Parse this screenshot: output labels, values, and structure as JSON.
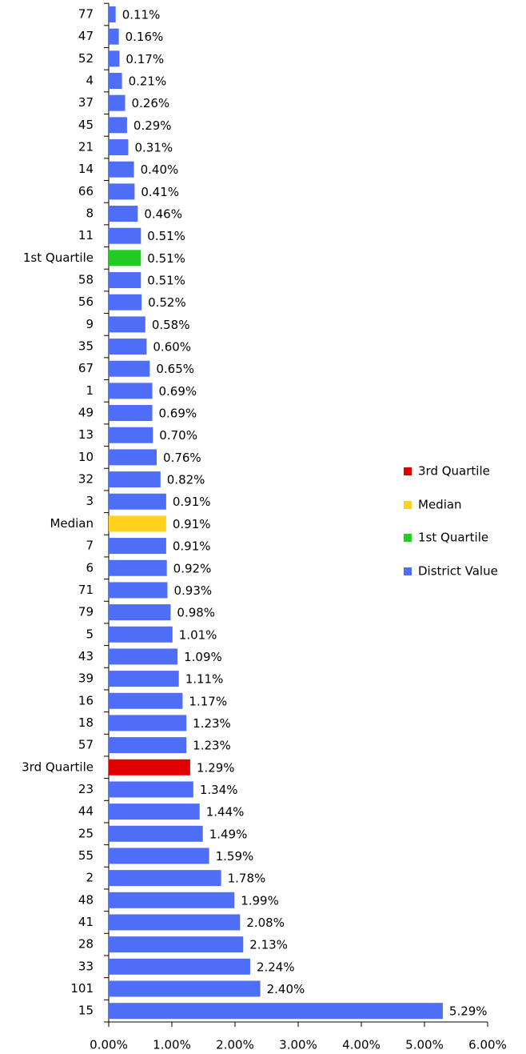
{
  "chart_data": {
    "type": "barh",
    "categories": [
      "77",
      "47",
      "52",
      "4",
      "37",
      "45",
      "21",
      "14",
      "66",
      "8",
      "11",
      "1st Quartile",
      "58",
      "56",
      "9",
      "35",
      "67",
      "1",
      "49",
      "13",
      "10",
      "32",
      "3",
      "Median",
      "7",
      "6",
      "71",
      "79",
      "5",
      "43",
      "39",
      "16",
      "18",
      "57",
      "3rd Quartile",
      "23",
      "44",
      "25",
      "55",
      "2",
      "48",
      "41",
      "28",
      "33",
      "101",
      "15"
    ],
    "series": [
      {
        "name": "District Value",
        "color": "#4f6ef7",
        "values": [
          0.11,
          0.16,
          0.17,
          0.21,
          0.26,
          0.29,
          0.31,
          0.4,
          0.41,
          0.46,
          0.51,
          null,
          0.51,
          0.52,
          0.58,
          0.6,
          0.65,
          0.69,
          0.69,
          0.7,
          0.76,
          0.82,
          0.91,
          null,
          0.91,
          0.92,
          0.93,
          0.98,
          1.01,
          1.09,
          1.11,
          1.17,
          1.23,
          1.23,
          null,
          1.34,
          1.44,
          1.49,
          1.59,
          1.78,
          1.99,
          2.08,
          2.13,
          2.24,
          2.4,
          5.29
        ],
        "value_labels": [
          "0.11%",
          "0.16%",
          "0.17%",
          "0.21%",
          "0.26%",
          "0.29%",
          "0.31%",
          "0.40%",
          "0.41%",
          "0.46%",
          "0.51%",
          null,
          "0.51%",
          "0.52%",
          "0.58%",
          "0.60%",
          "0.65%",
          "0.69%",
          "0.69%",
          "0.70%",
          "0.76%",
          "0.82%",
          "0.91%",
          null,
          "0.91%",
          "0.92%",
          "0.93%",
          "0.98%",
          "1.01%",
          "1.09%",
          "1.11%",
          "1.17%",
          "1.23%",
          "1.23%",
          null,
          "1.34%",
          "1.44%",
          "1.49%",
          "1.59%",
          "1.78%",
          "1.99%",
          "2.08%",
          "2.13%",
          "2.24%",
          "2.40%",
          "5.29%"
        ]
      },
      {
        "name": "1st Quartile",
        "color": "#22cc22",
        "values": [
          null,
          null,
          null,
          null,
          null,
          null,
          null,
          null,
          null,
          null,
          null,
          0.51,
          null,
          null,
          null,
          null,
          null,
          null,
          null,
          null,
          null,
          null,
          null,
          null,
          null,
          null,
          null,
          null,
          null,
          null,
          null,
          null,
          null,
          null,
          null,
          null,
          null,
          null,
          null,
          null,
          null,
          null,
          null,
          null,
          null,
          null
        ],
        "value_labels": [
          null,
          null,
          null,
          null,
          null,
          null,
          null,
          null,
          null,
          null,
          null,
          "0.51%",
          null,
          null,
          null,
          null,
          null,
          null,
          null,
          null,
          null,
          null,
          null,
          null,
          null,
          null,
          null,
          null,
          null,
          null,
          null,
          null,
          null,
          null,
          null,
          null,
          null,
          null,
          null,
          null,
          null,
          null,
          null,
          null,
          null,
          null
        ]
      },
      {
        "name": "Median",
        "color": "#ffd21e",
        "values": [
          null,
          null,
          null,
          null,
          null,
          null,
          null,
          null,
          null,
          null,
          null,
          null,
          null,
          null,
          null,
          null,
          null,
          null,
          null,
          null,
          null,
          null,
          null,
          0.91,
          null,
          null,
          null,
          null,
          null,
          null,
          null,
          null,
          null,
          null,
          null,
          null,
          null,
          null,
          null,
          null,
          null,
          null,
          null,
          null,
          null,
          null
        ],
        "value_labels": [
          null,
          null,
          null,
          null,
          null,
          null,
          null,
          null,
          null,
          null,
          null,
          null,
          null,
          null,
          null,
          null,
          null,
          null,
          null,
          null,
          null,
          null,
          null,
          "0.91%",
          null,
          null,
          null,
          null,
          null,
          null,
          null,
          null,
          null,
          null,
          null,
          null,
          null,
          null,
          null,
          null,
          null,
          null,
          null,
          null,
          null,
          null
        ]
      },
      {
        "name": "3rd Quartile",
        "color": "#e00000",
        "values": [
          null,
          null,
          null,
          null,
          null,
          null,
          null,
          null,
          null,
          null,
          null,
          null,
          null,
          null,
          null,
          null,
          null,
          null,
          null,
          null,
          null,
          null,
          null,
          null,
          null,
          null,
          null,
          null,
          null,
          null,
          null,
          null,
          null,
          null,
          1.29,
          null,
          null,
          null,
          null,
          null,
          null,
          null,
          null,
          null,
          null,
          null
        ],
        "value_labels": [
          null,
          null,
          null,
          null,
          null,
          null,
          null,
          null,
          null,
          null,
          null,
          null,
          null,
          null,
          null,
          null,
          null,
          null,
          null,
          null,
          null,
          null,
          null,
          null,
          null,
          null,
          null,
          null,
          null,
          null,
          null,
          null,
          null,
          null,
          "1.29%",
          null,
          null,
          null,
          null,
          null,
          null,
          null,
          null,
          null,
          null,
          null
        ]
      }
    ],
    "xlim": [
      0,
      6
    ],
    "xticks": [
      {
        "value": 0,
        "label": "0.00%"
      },
      {
        "value": 1,
        "label": "1.00%"
      },
      {
        "value": 2,
        "label": "2.00%"
      },
      {
        "value": 3,
        "label": "3.00%"
      },
      {
        "value": 4,
        "label": "4.00%"
      },
      {
        "value": 5,
        "label": "5.00%"
      },
      {
        "value": 6,
        "label": "6.00%"
      }
    ],
    "legend": "right"
  }
}
